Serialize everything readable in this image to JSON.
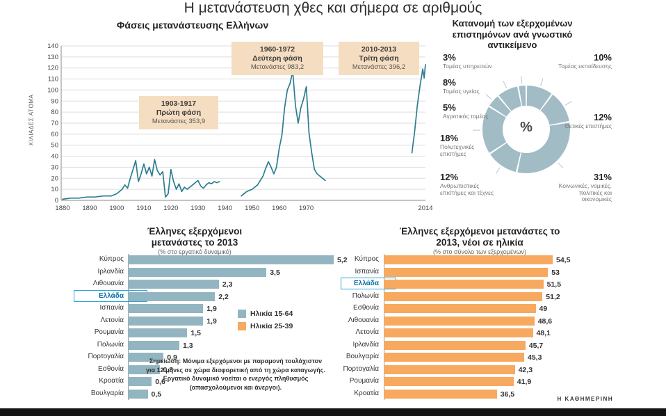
{
  "page": {
    "title": "Η μετανάστευση χθες και σήμερα σε αριθμούς",
    "credit": "Η ΚΑΘΗΜΕΡΙΝΗ"
  },
  "chart_data": [
    {
      "id": "migration-phases",
      "type": "line",
      "title": "Φάσεις μετανάστευσης Ελλήνων",
      "ylabel": "ΧΙΛΙΑΔΕΣ ΑΤΟΜΑ",
      "ylim": [
        0,
        140
      ],
      "ytick_step": 10,
      "xlim": [
        1880,
        2014
      ],
      "xticks": [
        1880,
        1890,
        1900,
        1910,
        1920,
        1930,
        1940,
        1950,
        1960,
        1970,
        2014
      ],
      "grid": true,
      "line_color": "#2b7d90",
      "segments": [
        {
          "points": [
            [
              1880,
              1
            ],
            [
              1883,
              2
            ],
            [
              1886,
              2
            ],
            [
              1889,
              3
            ],
            [
              1892,
              3
            ],
            [
              1895,
              4
            ],
            [
              1898,
              4
            ],
            [
              1900,
              6
            ],
            [
              1902,
              10
            ],
            [
              1903,
              14
            ],
            [
              1904,
              11
            ],
            [
              1905,
              20
            ],
            [
              1906,
              28
            ],
            [
              1907,
              36
            ],
            [
              1908,
              17
            ],
            [
              1909,
              24
            ],
            [
              1910,
              33
            ],
            [
              1911,
              24
            ],
            [
              1912,
              30
            ],
            [
              1913,
              22
            ],
            [
              1914,
              37
            ],
            [
              1915,
              27
            ],
            [
              1916,
              23
            ],
            [
              1917,
              26
            ],
            [
              1918,
              3
            ],
            [
              1919,
              6
            ],
            [
              1920,
              28
            ],
            [
              1921,
              17
            ],
            [
              1922,
              10
            ],
            [
              1923,
              15
            ],
            [
              1924,
              8
            ],
            [
              1925,
              12
            ],
            [
              1926,
              10
            ],
            [
              1927,
              12
            ],
            [
              1928,
              14
            ],
            [
              1929,
              16
            ],
            [
              1930,
              18
            ],
            [
              1931,
              13
            ],
            [
              1932,
              11
            ],
            [
              1933,
              14
            ],
            [
              1934,
              16
            ],
            [
              1935,
              15
            ],
            [
              1936,
              17
            ],
            [
              1937,
              16
            ],
            [
              1938,
              17
            ]
          ]
        },
        {
          "points": [
            [
              1946,
              4
            ],
            [
              1948,
              8
            ],
            [
              1950,
              10
            ],
            [
              1952,
              14
            ],
            [
              1954,
              22
            ],
            [
              1955,
              29
            ],
            [
              1956,
              35
            ],
            [
              1957,
              30
            ],
            [
              1958,
              24
            ],
            [
              1959,
              30
            ],
            [
              1960,
              47
            ],
            [
              1961,
              59
            ],
            [
              1962,
              84
            ],
            [
              1963,
              100
            ],
            [
              1964,
              106
            ],
            [
              1965,
              117
            ],
            [
              1966,
              86
            ],
            [
              1967,
              70
            ],
            [
              1968,
              84
            ],
            [
              1969,
              92
            ],
            [
              1970,
              103
            ],
            [
              1971,
              61
            ],
            [
              1972,
              43
            ],
            [
              1973,
              28
            ],
            [
              1974,
              24
            ],
            [
              1975,
              22
            ],
            [
              1976,
              20
            ],
            [
              1977,
              18
            ]
          ]
        },
        {
          "points": [
            [
              2009,
              43
            ],
            [
              2010,
              62
            ],
            [
              2011,
              86
            ],
            [
              2012,
              104
            ],
            [
              2013,
              119
            ],
            [
              2013.5,
              111
            ],
            [
              2014,
              123
            ]
          ]
        }
      ],
      "annotations": [
        {
          "period": "1903-1917",
          "phase": "Πρώτη φάση",
          "detail": "Μετανάστες 353,9"
        },
        {
          "period": "1960-1972",
          "phase": "Δεύτερη φάση",
          "detail": "Μετανάστες 983,2"
        },
        {
          "period": "2010-2013",
          "phase": "Τρίτη φάση",
          "detail": "Μετανάστες 396,2"
        }
      ]
    },
    {
      "id": "scientists-by-field",
      "type": "pie",
      "title": "Κατανομή των εξερχομένων επιστημόνων ανά γνωστικό αντικείμενο",
      "center_label": "%",
      "color": "#a2bcc6",
      "slices": [
        {
          "label": "Τομέας εκπαίδευσης",
          "value": 10,
          "pct": "10%"
        },
        {
          "label": "Θετικές επιστήμες",
          "value": 12,
          "pct": "12%"
        },
        {
          "label": "Κοινωνικές, νομικές, πολιτικές και οικονομικές",
          "value": 31,
          "pct": "31%"
        },
        {
          "label": "Ανθρωπιστικές επιστήμες και τέχνες",
          "value": 12,
          "pct": "12%"
        },
        {
          "label": "Πολυτεχνικές επιστήμες",
          "value": 18,
          "pct": "18%"
        },
        {
          "label": "Αγροτικός τομέας",
          "value": 5,
          "pct": "5%"
        },
        {
          "label": "Τομέας υγείας",
          "value": 8,
          "pct": "8%"
        },
        {
          "label": "Τομέας υπηρεσιών",
          "value": 3,
          "pct": "3%"
        }
      ]
    },
    {
      "id": "emigrants-2013",
      "type": "bar",
      "title": "Έλληνες εξερχόμενοι μετανάστες το 2013",
      "subtitle": "(% στο εργατικό δυναμικό)",
      "bar_color": "#93b5c1",
      "highlight": "Ελλάδα",
      "categories": [
        "Κύπρος",
        "Ιρλανδία",
        "Λιθουανία",
        "Ελλάδα",
        "Ισπανία",
        "Λετονία",
        "Ρουμανία",
        "Πολωνία",
        "Πορτογαλία",
        "Εσθονία",
        "Κροατία",
        "Βουλγαρία"
      ],
      "values": [
        5.2,
        3.5,
        2.3,
        2.2,
        1.9,
        1.9,
        1.5,
        1.3,
        0.9,
        0.8,
        0.6,
        0.5
      ],
      "value_labels": [
        "5,2",
        "3,5",
        "2,3",
        "2,2",
        "1,9",
        "1,9",
        "1,5",
        "1,3",
        "0,9",
        "0,8",
        "0,6",
        "0,5"
      ],
      "legend": [
        {
          "label": "Ηλικία 15-64",
          "color": "#93b5c1"
        },
        {
          "label": "Ηλικία 25-39",
          "color": "#f7a95f"
        }
      ],
      "note": "Σημείωση: Μόνιμα εξερχόμενοι με παραμονή τουλάχιστον για 12 μήνες σε χώρα διαφορετική από τη χώρα καταγωγής. Εργατικό δυναμικό νοείται ο ενεργός πληθυσμός (απασχολούμενοι και άνεργοι)."
    },
    {
      "id": "emigrants-2013-young",
      "type": "bar",
      "title": "Έλληνες εξερχόμενοι μετανάστες το 2013, νέοι σε ηλικία",
      "subtitle": "(% στο σύνολο των εξερχομένων)",
      "bar_color": "#f7a95f",
      "highlight": "Ελλάδα",
      "categories": [
        "Κύπρος",
        "Ισπανία",
        "Ελλάδα",
        "Πολωνία",
        "Εσθονία",
        "Λιθουανία",
        "Λετονία",
        "Ιρλανδία",
        "Βουλγαρία",
        "Πορτογαλία",
        "Ρουμανία",
        "Κροατία"
      ],
      "values": [
        54.5,
        53,
        51.5,
        51.2,
        49,
        48.6,
        48.1,
        45.7,
        45.3,
        42.3,
        41.9,
        36.5
      ],
      "value_labels": [
        "54,5",
        "53",
        "51,5",
        "51,2",
        "49",
        "48,6",
        "48,1",
        "45,7",
        "45,3",
        "42,3",
        "41,9",
        "36,5"
      ]
    }
  ]
}
